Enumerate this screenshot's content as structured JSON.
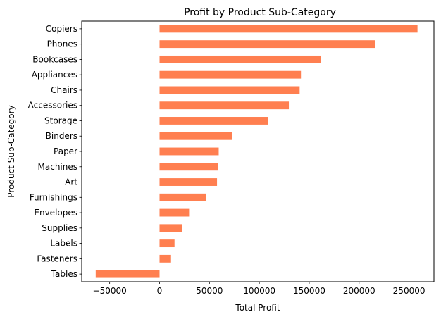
{
  "chart_data": {
    "type": "bar",
    "orientation": "horizontal",
    "title": "Profit by Product Sub-Category",
    "xlabel": "Total Profit",
    "ylabel": "Product Sub-Category",
    "xlim": [
      -78000,
      275000
    ],
    "xticks": [
      -50000,
      0,
      50000,
      100000,
      150000,
      200000,
      250000
    ],
    "xtick_labels": [
      "−50000",
      "0",
      "50000",
      "100000",
      "150000",
      "200000",
      "250000"
    ],
    "grid": false,
    "legend": "none",
    "bar_color": "#ff7f50",
    "categories": [
      "Copiers",
      "Phones",
      "Bookcases",
      "Appliances",
      "Chairs",
      "Accessories",
      "Storage",
      "Binders",
      "Paper",
      "Machines",
      "Art",
      "Furnishings",
      "Envelopes",
      "Supplies",
      "Labels",
      "Fasteners",
      "Tables"
    ],
    "values": [
      258500,
      216000,
      161900,
      141700,
      140400,
      129600,
      108500,
      72500,
      59300,
      58900,
      57600,
      46900,
      29600,
      22600,
      15000,
      11500,
      -64000
    ]
  }
}
